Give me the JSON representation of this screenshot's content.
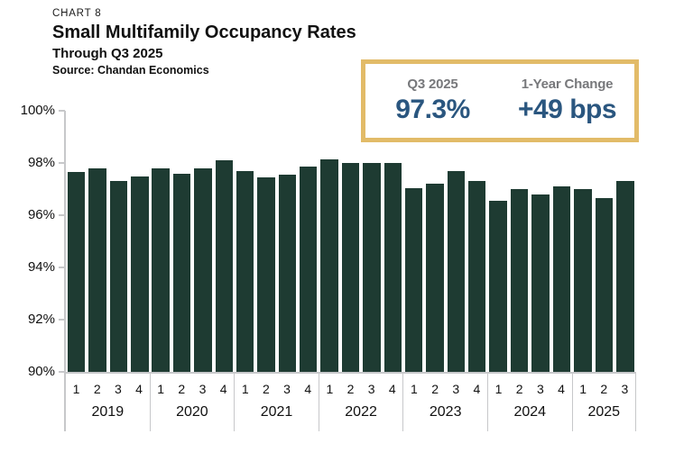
{
  "header": {
    "chart_label": "CHART 8",
    "title": "Small Multifamily Occupancy Rates",
    "subtitle": "Through Q3 2025",
    "source": "Source: Chandan Economics"
  },
  "callout": {
    "period_label": "Q3 2025",
    "period_value": "97.3%",
    "change_label": "1-Year Change",
    "change_value": "+49 bps"
  },
  "colors": {
    "bar_fill": "#1e3b32",
    "callout_border": "#e2bb68",
    "value_blue": "#2a567f",
    "label_gray": "#77787b",
    "axis_gray": "#c7c8ca"
  },
  "chart_data": {
    "type": "bar",
    "title": "Small Multifamily Occupancy Rates",
    "subtitle": "Through Q3 2025",
    "source": "Chandan Economics",
    "unit": "percent occupancy",
    "ylim": [
      90,
      100
    ],
    "ytick_values": [
      100,
      98,
      96,
      94,
      92,
      90
    ],
    "ytick_labels": [
      "100%",
      "98%",
      "96%",
      "94%",
      "92%",
      "90%"
    ],
    "grid": false,
    "legend": false,
    "groups": [
      {
        "year": "2019",
        "quarters": [
          "1",
          "2",
          "3",
          "4"
        ],
        "values": [
          97.65,
          97.8,
          97.3,
          97.5
        ]
      },
      {
        "year": "2020",
        "quarters": [
          "1",
          "2",
          "3",
          "4"
        ],
        "values": [
          97.8,
          97.6,
          97.8,
          98.1
        ]
      },
      {
        "year": "2021",
        "quarters": [
          "1",
          "2",
          "3",
          "4"
        ],
        "values": [
          97.7,
          97.45,
          97.55,
          97.85
        ]
      },
      {
        "year": "2022",
        "quarters": [
          "1",
          "2",
          "3",
          "4"
        ],
        "values": [
          98.15,
          98.0,
          98.0,
          98.0
        ]
      },
      {
        "year": "2023",
        "quarters": [
          "1",
          "2",
          "3",
          "4"
        ],
        "values": [
          97.05,
          97.2,
          97.7,
          97.3
        ]
      },
      {
        "year": "2024",
        "quarters": [
          "1",
          "2",
          "3",
          "4"
        ],
        "values": [
          96.55,
          97.0,
          96.8,
          97.1
        ]
      },
      {
        "year": "2025",
        "quarters": [
          "1",
          "2",
          "3"
        ],
        "values": [
          97.0,
          96.65,
          97.3
        ]
      }
    ]
  }
}
